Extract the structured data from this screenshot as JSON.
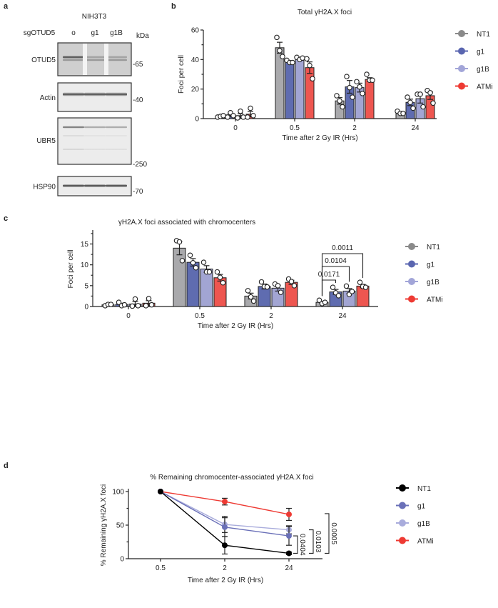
{
  "panel_labels": {
    "a": "a",
    "b": "b",
    "c": "c",
    "d": "d"
  },
  "blot": {
    "cell_line": "NIH3T3",
    "row_label": "sgOTUD5",
    "lanes": [
      "o",
      "g1",
      "g1B"
    ],
    "unit": "kDa",
    "panels": [
      {
        "name": "OTUD5",
        "marker": "-65"
      },
      {
        "name": "Actin",
        "marker": "-40"
      },
      {
        "name": "UBR5",
        "marker": "-250"
      },
      {
        "name": "HSP90",
        "marker": "-70"
      }
    ]
  },
  "chart_data": [
    {
      "id": "b",
      "type": "bar",
      "title": "Total γH2A.X foci",
      "xlabel": "Time after 2 Gy IR (Hrs)",
      "ylabel": "Foci per cell",
      "categories": [
        "0",
        "0.5",
        "2",
        "24"
      ],
      "ylim": [
        0,
        60
      ],
      "yticks": [
        0,
        20,
        40,
        60
      ],
      "legend": "right",
      "series": [
        {
          "name": "NT1",
          "color": "#a9a9ac",
          "legend_color": "#8a8a8a",
          "values": [
            1.5,
            48,
            12,
            4
          ],
          "sem": [
            0.3,
            3.7,
            2.2,
            0.5
          ],
          "points": [
            [
              1,
              1.5,
              2
            ],
            [
              55,
              46,
              42
            ],
            [
              15.5,
              12,
              8
            ],
            [
              5,
              3.5,
              3.5
            ]
          ]
        },
        {
          "name": "g1",
          "color": "#5f6cb0",
          "legend_color": "#5a66b0",
          "values": [
            2.5,
            38.5,
            21.5,
            11
          ],
          "sem": [
            1,
            0.5,
            4.3,
            2.2
          ],
          "points": [
            [
              1,
              4,
              2
            ],
            [
              39.5,
              38,
              38
            ],
            [
              28.5,
              21,
              14.5
            ],
            [
              14.5,
              11,
              7
            ]
          ]
        },
        {
          "name": "g1B",
          "color": "#a2a5d3",
          "legend_color": "#a2a5d8",
          "values": [
            2,
            40.5,
            21,
            13.5
          ],
          "sem": [
            1.3,
            0.5,
            3,
            3
          ],
          "points": [
            [
              0.5,
              5,
              1
            ],
            [
              41.5,
              40,
              41
            ],
            [
              25,
              21.5,
              17
            ],
            [
              16.5,
              16.5,
              8
            ]
          ]
        },
        {
          "name": "ATMi",
          "color": "#ee5650",
          "legend_color": "#ee3a33",
          "values": [
            3,
            34.5,
            26.5,
            15.5
          ],
          "sem": [
            1.8,
            3.9,
            1.2,
            2.5
          ],
          "points": [
            [
              1,
              7,
              2
            ],
            [
              40.5,
              36,
              27
            ],
            [
              30,
              26,
              26
            ],
            [
              19,
              17.5,
              10.5
            ]
          ]
        }
      ]
    },
    {
      "id": "c",
      "type": "bar",
      "title": "γH2A.X foci associated with chromocenters",
      "xlabel": "Time after 2 Gy IR (Hrs)",
      "ylabel": "Foci per cell",
      "categories": [
        "0",
        "0.5",
        "2",
        "24"
      ],
      "ylim": [
        0,
        18
      ],
      "yticks": [
        0,
        5,
        10,
        15
      ],
      "legend": "right",
      "series": [
        {
          "name": "NT1",
          "color": "#a9a9ac",
          "legend_color": "#8a8a8a",
          "values": [
            0.4,
            14,
            2.5,
            1
          ],
          "sem": [
            0.1,
            1.6,
            0.7,
            0.25
          ],
          "points": [
            [
              0.2,
              0.5,
              0.5
            ],
            [
              15.8,
              15.5,
              11
            ],
            [
              3.8,
              2.3,
              1.3
            ],
            [
              1.5,
              0.7,
              1
            ]
          ]
        },
        {
          "name": "g1",
          "color": "#5f6cb0",
          "legend_color": "#5a66b0",
          "values": [
            0.5,
            10.6,
            4.8,
            3.5
          ],
          "sem": [
            0.3,
            0.9,
            0.6,
            0.6
          ],
          "points": [
            [
              1,
              0.2,
              0.4
            ],
            [
              12.3,
              10.5,
              9.3
            ],
            [
              5.9,
              4.8,
              4.7
            ],
            [
              4.6,
              3.3,
              2.6
            ]
          ]
        },
        {
          "name": "g1B",
          "color": "#a2a5d3",
          "legend_color": "#a2a5d8",
          "values": [
            0.6,
            9,
            4.4,
            3.7
          ],
          "sem": [
            0.6,
            0.8,
            0.7,
            0.6
          ],
          "points": [
            [
              0.1,
              1.8,
              0.2
            ],
            [
              10.6,
              8.3,
              8.3
            ],
            [
              5.4,
              5,
              3.4
            ],
            [
              4.9,
              2.9,
              3.6
            ]
          ]
        },
        {
          "name": "ATMi",
          "color": "#ee5650",
          "legend_color": "#ee3a33",
          "values": [
            0.8,
            6.9,
            5.8,
            4.9
          ],
          "sem": [
            0.6,
            0.8,
            0.5,
            0.4
          ],
          "points": [
            [
              0.2,
              1.9,
              0.4
            ],
            [
              8.3,
              7,
              5.7
            ],
            [
              6.6,
              6,
              5
            ],
            [
              5.8,
              4.8,
              4.6
            ]
          ]
        }
      ],
      "annotations": [
        {
          "category": "24",
          "from": "NT1",
          "to": "g1",
          "text": "0.0171"
        },
        {
          "category": "24",
          "from": "NT1",
          "to": "g1B",
          "text": "0.0104"
        },
        {
          "category": "24",
          "from": "NT1",
          "to": "ATMi",
          "text": "0.0011"
        }
      ]
    },
    {
      "id": "d",
      "type": "line",
      "title": "% Remaining chromocenter-associated γH2A.X foci",
      "xlabel": "Time after 2 Gy IR (Hrs)",
      "ylabel": "% Remaining  γH2A.X foci",
      "categories": [
        "0.5",
        "2",
        "24"
      ],
      "ylim": [
        0,
        100
      ],
      "yticks": [
        0,
        50,
        100
      ],
      "legend": "right",
      "series": [
        {
          "name": "NT1",
          "color": "#000000",
          "values": [
            100,
            20,
            8
          ],
          "sem": [
            0,
            13,
            2
          ]
        },
        {
          "name": "g1",
          "color": "#6a70b8",
          "values": [
            100,
            47,
            34
          ],
          "sem": [
            0,
            14,
            14
          ]
        },
        {
          "name": "g1B",
          "color": "#a9acdc",
          "values": [
            100,
            51,
            43
          ],
          "sem": [
            0,
            12,
            6
          ]
        },
        {
          "name": "ATMi",
          "color": "#ee3a33",
          "values": [
            100,
            85,
            66
          ],
          "sem": [
            0,
            5,
            9
          ]
        }
      ],
      "annotations": [
        {
          "category": "24",
          "from": "NT1",
          "to": "g1",
          "text": "0.0404"
        },
        {
          "category": "24",
          "from": "NT1",
          "to": "g1B",
          "text": "0.0103"
        },
        {
          "category": "24",
          "from": "NT1",
          "to": "ATMi",
          "text": "0.0005"
        }
      ]
    }
  ]
}
